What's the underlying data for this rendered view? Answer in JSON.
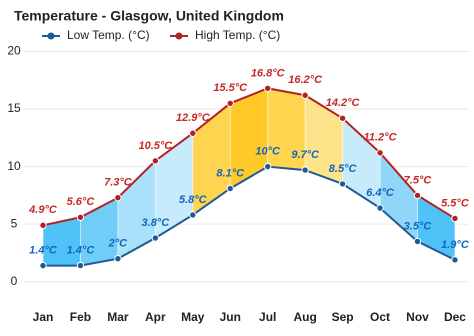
{
  "chart_data": {
    "type": "line",
    "title": "Temperature - Glasgow, United Kingdom",
    "categories": [
      "Jan",
      "Feb",
      "Mar",
      "Apr",
      "May",
      "Jun",
      "Jul",
      "Aug",
      "Sep",
      "Oct",
      "Nov",
      "Dec"
    ],
    "series": [
      {
        "name": "Low Temp. (°C)",
        "color": "#1f5a96",
        "label_color": "#1565c0",
        "values": [
          1.4,
          1.4,
          2,
          3.8,
          5.8,
          8.1,
          10,
          9.7,
          8.5,
          6.4,
          3.5,
          1.9
        ],
        "value_labels": [
          "1.4°C",
          "1.4°C",
          "2°C",
          "3.8°C",
          "5.8°C",
          "8.1°C",
          "10°C",
          "9.7°C",
          "8.5°C",
          "6.4°C",
          "3.5°C",
          "1.9°C"
        ]
      },
      {
        "name": "High Temp. (°C)",
        "color": "#b22222",
        "label_color": "#c62828",
        "values": [
          4.9,
          5.6,
          7.3,
          10.5,
          12.9,
          15.5,
          16.8,
          16.2,
          14.2,
          11.2,
          7.5,
          5.5
        ],
        "value_labels": [
          "4.9°C",
          "5.6°C",
          "7.3°C",
          "10.5°C",
          "12.9°C",
          "15.5°C",
          "16.8°C",
          "16.2°C",
          "14.2°C",
          "11.2°C",
          "7.5°C",
          "5.5°C"
        ]
      }
    ],
    "band_colors": [
      "#4fc3f7",
      "#6fcdf7",
      "#a9e0fa",
      "#c7ebfb",
      "#ffd54f",
      "#ffc928",
      "#ffd54f",
      "#ffe38a",
      "#c7ebfb",
      "#8fd6f8",
      "#4fc3f7"
    ],
    "ylim": [
      -1.5,
      21
    ],
    "yticks": [
      0,
      5,
      10,
      15,
      20
    ],
    "grid": true
  }
}
